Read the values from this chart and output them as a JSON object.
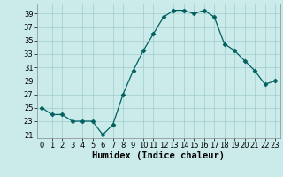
{
  "x": [
    0,
    1,
    2,
    3,
    4,
    5,
    6,
    7,
    8,
    9,
    10,
    11,
    12,
    13,
    14,
    15,
    16,
    17,
    18,
    19,
    20,
    21,
    22,
    23
  ],
  "y": [
    25,
    24,
    24,
    23,
    23,
    23,
    21,
    22.5,
    27,
    30.5,
    33.5,
    36,
    38.5,
    39.5,
    39.5,
    39,
    39.5,
    38.5,
    34.5,
    33.5,
    32,
    30.5,
    28.5,
    29
  ],
  "line_color": "#005f5f",
  "marker": "D",
  "marker_size": 2.5,
  "bg_color": "#cbebeb",
  "grid_color": "#a0cccc",
  "xlabel": "Humidex (Indice chaleur)",
  "xlim": [
    -0.5,
    23.5
  ],
  "ylim": [
    20.5,
    40.5
  ],
  "yticks": [
    21,
    23,
    25,
    27,
    29,
    31,
    33,
    35,
    37,
    39
  ],
  "xticks": [
    0,
    1,
    2,
    3,
    4,
    5,
    6,
    7,
    8,
    9,
    10,
    11,
    12,
    13,
    14,
    15,
    16,
    17,
    18,
    19,
    20,
    21,
    22,
    23
  ],
  "xlabel_fontsize": 7.5,
  "tick_fontsize": 6
}
